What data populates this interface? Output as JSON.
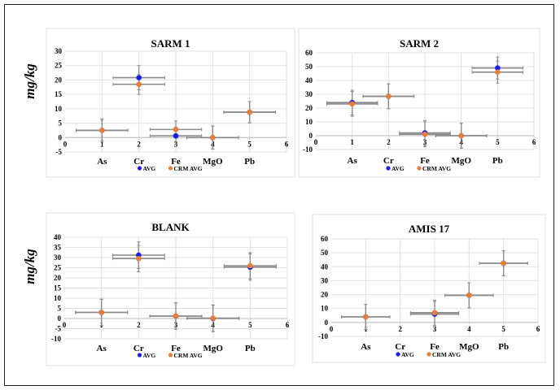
{
  "y_axis_label": "mg/kg",
  "chart_data": [
    {
      "type": "scatter",
      "title": "SARM 1",
      "xlim": [
        0,
        6
      ],
      "ylim": [
        -5,
        30
      ],
      "ystep": 5,
      "categories": [
        "As",
        "Cr",
        "Fe",
        "MgO",
        "Pb"
      ],
      "grid": true,
      "legend": "bottom",
      "series": [
        {
          "name": "AVG",
          "color": "#1a1aff",
          "x": [
            1,
            2,
            3,
            4,
            5
          ],
          "y": [
            2.5,
            20.8,
            0.6,
            0,
            8.8
          ],
          "xerr": [
            0.7,
            0.7,
            0.7,
            0.7,
            0.7
          ],
          "yerr": [
            4,
            4.2,
            3,
            4,
            3.7
          ]
        },
        {
          "name": "CRM AVG",
          "color": "#ed7d31",
          "x": [
            1,
            2,
            3,
            4,
            5
          ],
          "y": [
            2.5,
            18.5,
            2.8,
            0,
            8.8
          ],
          "xerr": [
            0.7,
            0.7,
            0.7,
            0.7,
            0.7
          ],
          "yerr": [
            3.5,
            3.5,
            3,
            4,
            3.7
          ]
        }
      ]
    },
    {
      "type": "scatter",
      "title": "SARM 2",
      "xlim": [
        0,
        6
      ],
      "ylim": [
        -10,
        60
      ],
      "ystep": 10,
      "categories": [
        "As",
        "Cr",
        "Fe",
        "MgO",
        "Pb"
      ],
      "grid": true,
      "legend": "bottom",
      "series": [
        {
          "name": "AVG",
          "color": "#1a1aff",
          "x": [
            1,
            2,
            3,
            4,
            5
          ],
          "y": [
            24,
            28.5,
            2,
            0,
            49
          ],
          "xerr": [
            0.7,
            0.7,
            0.7,
            0.7,
            0.7
          ],
          "yerr": [
            9,
            9,
            9,
            9,
            8
          ]
        },
        {
          "name": "CRM AVG",
          "color": "#ed7d31",
          "x": [
            1,
            2,
            3,
            4,
            5
          ],
          "y": [
            23,
            28.5,
            1,
            0,
            46
          ],
          "xerr": [
            0.7,
            0.7,
            0.7,
            0.7,
            0.7
          ],
          "yerr": [
            9,
            9,
            9,
            9,
            8
          ]
        }
      ]
    },
    {
      "type": "scatter",
      "title": "BLANK",
      "xlim": [
        0,
        6
      ],
      "ylim": [
        -10,
        40
      ],
      "ystep": 5,
      "categories": [
        "As",
        "Cr",
        "Fe",
        "MgO",
        "Pb"
      ],
      "grid": true,
      "legend": "bottom",
      "series": [
        {
          "name": "AVG",
          "color": "#1a1aff",
          "x": [
            1,
            2,
            3,
            4,
            5
          ],
          "y": [
            3,
            31.2,
            1.2,
            0,
            25.3
          ],
          "xerr": [
            0.7,
            0.7,
            0.7,
            0.7,
            0.7
          ],
          "yerr": [
            6.5,
            6.5,
            6.5,
            6.5,
            6.5
          ]
        },
        {
          "name": "CRM AVG",
          "color": "#ed7d31",
          "x": [
            1,
            2,
            3,
            4,
            5
          ],
          "y": [
            3,
            29.5,
            1.2,
            0.2,
            26
          ],
          "xerr": [
            0.7,
            0.7,
            0.7,
            0.7,
            0.7
          ],
          "yerr": [
            6.5,
            6.5,
            6.5,
            6.5,
            6.5
          ]
        }
      ]
    },
    {
      "type": "scatter",
      "title": "AMIS 17",
      "xlim": [
        0,
        6
      ],
      "ylim": [
        -10,
        60
      ],
      "ystep": 10,
      "categories": [
        "As",
        "Cr",
        "Fe",
        "MgO",
        "Pb"
      ],
      "grid": true,
      "legend": "bottom",
      "series": [
        {
          "name": "AVG",
          "color": "#1a1aff",
          "x": [
            1,
            3,
            4,
            5
          ],
          "y": [
            4,
            6,
            19.5,
            42.5
          ],
          "xerr": [
            0.7,
            0.7,
            0.7,
            0.7
          ],
          "yerr": [
            9,
            9,
            9,
            9
          ]
        },
        {
          "name": "CRM AVG",
          "color": "#ed7d31",
          "x": [
            1,
            3,
            4,
            5
          ],
          "y": [
            4,
            7,
            19.5,
            42.5
          ],
          "xerr": [
            0.7,
            0.7,
            0.7,
            0.7
          ],
          "yerr": [
            9,
            9,
            9,
            9
          ]
        }
      ]
    }
  ]
}
